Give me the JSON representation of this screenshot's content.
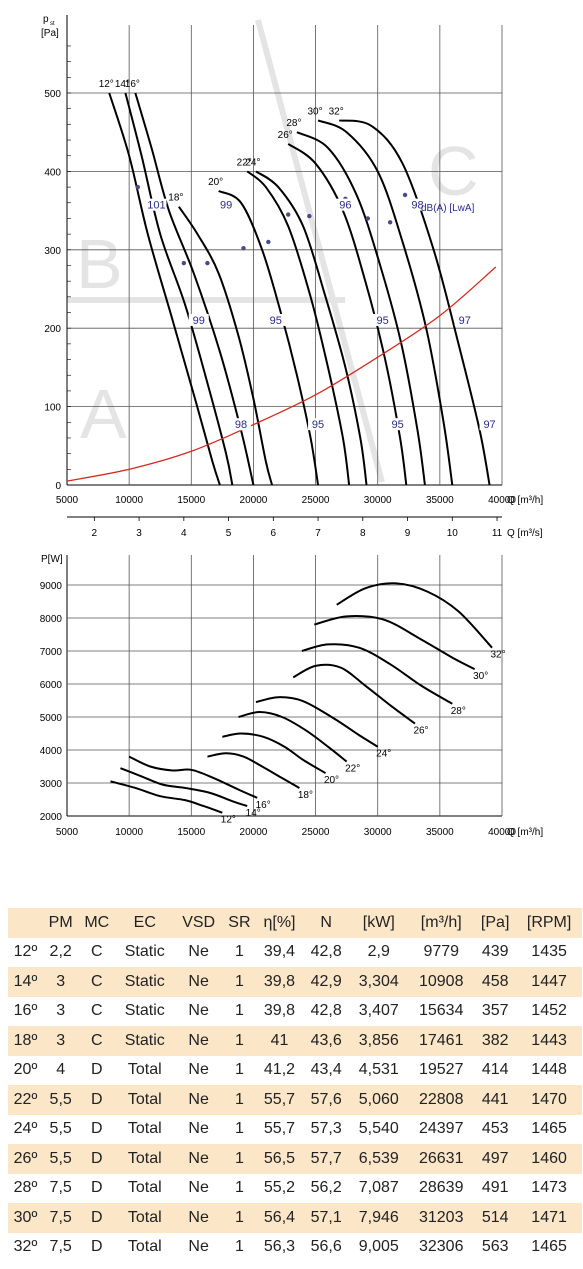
{
  "pressure_chart": {
    "ylabel_line1": "p",
    "ylabel_sub": "st",
    "ylabel_line2": "[Pa]",
    "x_unit": "Q [m³/h]",
    "x2_unit": "Q [m³/s]",
    "zone_letters": [
      "A",
      "B",
      "C"
    ],
    "noise_label": "dB(A) [LwA]"
  },
  "power_chart": {
    "ylabel": "P[W]",
    "x_unit": "Q [m³/h]"
  },
  "chart_data": [
    {
      "type": "line",
      "name": "pressure-flow",
      "xlim": [
        5000,
        40000
      ],
      "ylim": [
        0,
        500
      ],
      "x_ticks": [
        5000,
        10000,
        15000,
        20000,
        25000,
        30000,
        35000,
        40000
      ],
      "y_ticks": [
        0,
        100,
        200,
        300,
        400,
        500
      ],
      "x2_ticks": [
        2,
        3,
        4,
        5,
        6,
        7,
        8,
        9,
        10,
        11
      ],
      "grid": true,
      "series": [
        {
          "name": "12°",
          "points": [
            [
              8400,
              500
            ],
            [
              10000,
              420
            ],
            [
              11500,
              320
            ],
            [
              13500,
              210
            ],
            [
              15300,
              110
            ],
            [
              16700,
              30
            ],
            [
              17300,
              0
            ]
          ]
        },
        {
          "name": "14°",
          "points": [
            [
              9700,
              500
            ],
            [
              11000,
              420
            ],
            [
              12500,
              320
            ],
            [
              14500,
              230
            ],
            [
              16300,
              130
            ],
            [
              17800,
              40
            ],
            [
              18300,
              0
            ]
          ]
        },
        {
          "name": "16°",
          "points": [
            [
              10500,
              500
            ],
            [
              11800,
              430
            ],
            [
              13200,
              350
            ],
            [
              15200,
              270
            ],
            [
              17300,
              170
            ],
            [
              19000,
              70
            ],
            [
              20000,
              0
            ]
          ]
        },
        {
          "name": "18°",
          "points": [
            [
              14000,
              355
            ],
            [
              15500,
              320
            ],
            [
              17200,
              270
            ],
            [
              18800,
              190
            ],
            [
              20000,
              110
            ],
            [
              21000,
              30
            ],
            [
              21500,
              0
            ]
          ]
        },
        {
          "name": "20°",
          "points": [
            [
              17200,
              375
            ],
            [
              19000,
              360
            ],
            [
              20700,
              300
            ],
            [
              22200,
              220
            ],
            [
              23500,
              140
            ],
            [
              24600,
              60
            ],
            [
              25200,
              0
            ]
          ]
        },
        {
          "name": "22°",
          "points": [
            [
              19500,
              400
            ],
            [
              21000,
              380
            ],
            [
              22800,
              330
            ],
            [
              24600,
              240
            ],
            [
              26000,
              150
            ],
            [
              27200,
              60
            ],
            [
              27700,
              0
            ]
          ]
        },
        {
          "name": "24°",
          "points": [
            [
              20200,
              400
            ],
            [
              22000,
              380
            ],
            [
              24000,
              330
            ],
            [
              25800,
              240
            ],
            [
              27400,
              150
            ],
            [
              28600,
              60
            ],
            [
              29100,
              0
            ]
          ]
        },
        {
          "name": "26°",
          "points": [
            [
              22800,
              435
            ],
            [
              25000,
              410
            ],
            [
              27200,
              350
            ],
            [
              29000,
              260
            ],
            [
              30600,
              160
            ],
            [
              31800,
              60
            ],
            [
              32300,
              0
            ]
          ]
        },
        {
          "name": "28°",
          "points": [
            [
              23500,
              450
            ],
            [
              26000,
              430
            ],
            [
              28300,
              370
            ],
            [
              30200,
              280
            ],
            [
              31900,
              180
            ],
            [
              33200,
              70
            ],
            [
              33800,
              0
            ]
          ]
        },
        {
          "name": "30°",
          "points": [
            [
              25200,
              465
            ],
            [
              27500,
              450
            ],
            [
              30000,
              400
            ],
            [
              32000,
              310
            ],
            [
              33900,
              200
            ],
            [
              35300,
              80
            ],
            [
              36000,
              0
            ]
          ]
        },
        {
          "name": "32°",
          "points": [
            [
              26900,
              465
            ],
            [
              29500,
              458
            ],
            [
              32000,
              410
            ],
            [
              34500,
              300
            ],
            [
              36500,
              180
            ],
            [
              38200,
              70
            ],
            [
              39000,
              0
            ]
          ]
        },
        {
          "name": "system",
          "points": [
            [
              5000,
              5
            ],
            [
              10000,
              20
            ],
            [
              15000,
              43
            ],
            [
              20000,
              77
            ],
            [
              25000,
              115
            ],
            [
              30000,
              163
            ],
            [
              35000,
              216
            ],
            [
              39500,
              278
            ]
          ]
        }
      ],
      "markers": [
        [
          10700,
          380
        ],
        [
          14400,
          283
        ],
        [
          16300,
          283
        ],
        [
          19200,
          302
        ],
        [
          21200,
          310
        ],
        [
          22800,
          345
        ],
        [
          24500,
          343
        ],
        [
          27400,
          365
        ],
        [
          29200,
          340
        ],
        [
          31000,
          335
        ],
        [
          32200,
          370
        ]
      ],
      "noise_labels": [
        {
          "text": "101",
          "x": 12200,
          "y": 355
        },
        {
          "text": "99",
          "x": 17800,
          "y": 355
        },
        {
          "text": "96",
          "x": 27400,
          "y": 355
        },
        {
          "text": "98",
          "x": 33200,
          "y": 355
        },
        {
          "text": "99",
          "x": 15600,
          "y": 208
        },
        {
          "text": "95",
          "x": 21800,
          "y": 208
        },
        {
          "text": "95",
          "x": 30400,
          "y": 208
        },
        {
          "text": "97",
          "x": 37000,
          "y": 208
        },
        {
          "text": "98",
          "x": 19000,
          "y": 75
        },
        {
          "text": "95",
          "x": 25200,
          "y": 75
        },
        {
          "text": "95",
          "x": 31600,
          "y": 75
        },
        {
          "text": "97",
          "x": 39000,
          "y": 75
        }
      ]
    },
    {
      "type": "line",
      "name": "power-flow",
      "xlim": [
        5000,
        40000
      ],
      "ylim": [
        2000,
        10000
      ],
      "x_ticks": [
        5000,
        10000,
        15000,
        20000,
        25000,
        30000,
        35000,
        40000
      ],
      "y_ticks": [
        2000,
        3000,
        4000,
        5000,
        6000,
        7000,
        8000,
        9000
      ],
      "grid": true,
      "series": [
        {
          "name": "12°",
          "points": [
            [
              8500,
              3050
            ],
            [
              10500,
              2850
            ],
            [
              12500,
              2600
            ],
            [
              14500,
              2480
            ],
            [
              16000,
              2300
            ],
            [
              17500,
              2100
            ]
          ]
        },
        {
          "name": "14°",
          "points": [
            [
              9300,
              3450
            ],
            [
              11000,
              3200
            ],
            [
              12700,
              2950
            ],
            [
              14500,
              2850
            ],
            [
              16500,
              2700
            ],
            [
              18300,
              2450
            ],
            [
              19500,
              2300
            ]
          ]
        },
        {
          "name": "16°",
          "points": [
            [
              10000,
              3800
            ],
            [
              11700,
              3500
            ],
            [
              13500,
              3380
            ],
            [
              15000,
              3400
            ],
            [
              16800,
              3150
            ],
            [
              18800,
              2800
            ],
            [
              20300,
              2550
            ]
          ]
        },
        {
          "name": "18°",
          "points": [
            [
              16300,
              3800
            ],
            [
              17800,
              3900
            ],
            [
              19200,
              3800
            ],
            [
              20700,
              3500
            ],
            [
              22300,
              3150
            ],
            [
              23700,
              2850
            ]
          ]
        },
        {
          "name": "20°",
          "points": [
            [
              17500,
              4400
            ],
            [
              19000,
              4500
            ],
            [
              20800,
              4400
            ],
            [
              22500,
              4100
            ],
            [
              24000,
              3700
            ],
            [
              25800,
              3300
            ]
          ]
        },
        {
          "name": "22°",
          "points": [
            [
              18800,
              5000
            ],
            [
              20500,
              5150
            ],
            [
              22300,
              5000
            ],
            [
              24200,
              4600
            ],
            [
              26000,
              4100
            ],
            [
              27500,
              3650
            ]
          ]
        },
        {
          "name": "24°",
          "points": [
            [
              20200,
              5450
            ],
            [
              22000,
              5600
            ],
            [
              24000,
              5480
            ],
            [
              26500,
              4950
            ],
            [
              28500,
              4450
            ],
            [
              30000,
              4100
            ]
          ]
        },
        {
          "name": "26°",
          "points": [
            [
              23200,
              6200
            ],
            [
              25000,
              6550
            ],
            [
              27000,
              6500
            ],
            [
              29000,
              5950
            ],
            [
              31200,
              5300
            ],
            [
              33000,
              4800
            ]
          ]
        },
        {
          "name": "28°",
          "points": [
            [
              23900,
              7000
            ],
            [
              26000,
              7200
            ],
            [
              28500,
              7100
            ],
            [
              31000,
              6600
            ],
            [
              33500,
              5950
            ],
            [
              36000,
              5400
            ]
          ]
        },
        {
          "name": "30°",
          "points": [
            [
              24900,
              7800
            ],
            [
              27500,
              8050
            ],
            [
              30500,
              7950
            ],
            [
              33500,
              7350
            ],
            [
              36000,
              6800
            ],
            [
              37800,
              6450
            ]
          ]
        },
        {
          "name": "32°",
          "points": [
            [
              26700,
              8400
            ],
            [
              29000,
              8900
            ],
            [
              31500,
              9050
            ],
            [
              34000,
              8800
            ],
            [
              36500,
              8200
            ],
            [
              39200,
              7100
            ]
          ]
        }
      ]
    },
    {
      "type": "table",
      "name": "performance-table",
      "columns": [
        "",
        "PM",
        "MC",
        "EC",
        "VSD",
        "SR",
        "η[%]",
        "N",
        "[kW]",
        "[m³/h]",
        "[Pa]",
        "[RPM]"
      ],
      "rows": [
        [
          "12º",
          "2,2",
          "C",
          "Static",
          "Ne",
          "1",
          "39,4",
          "42,8",
          "2,9",
          "9779",
          "439",
          "1435"
        ],
        [
          "14º",
          "3",
          "C",
          "Static",
          "Ne",
          "1",
          "39,8",
          "42,9",
          "3,304",
          "10908",
          "458",
          "1447"
        ],
        [
          "16º",
          "3",
          "C",
          "Static",
          "Ne",
          "1",
          "39,8",
          "42,8",
          "3,407",
          "15634",
          "357",
          "1452"
        ],
        [
          "18º",
          "3",
          "C",
          "Static",
          "Ne",
          "1",
          "41",
          "43,6",
          "3,856",
          "17461",
          "382",
          "1443"
        ],
        [
          "20º",
          "4",
          "D",
          "Total",
          "Ne",
          "1",
          "41,2",
          "43,4",
          "4,531",
          "19527",
          "414",
          "1448"
        ],
        [
          "22º",
          "5,5",
          "D",
          "Total",
          "Ne",
          "1",
          "55,7",
          "57,6",
          "5,060",
          "22808",
          "441",
          "1470"
        ],
        [
          "24º",
          "5,5",
          "D",
          "Total",
          "Ne",
          "1",
          "55,7",
          "57,3",
          "5,540",
          "24397",
          "453",
          "1465"
        ],
        [
          "26º",
          "5,5",
          "D",
          "Total",
          "Ne",
          "1",
          "56,5",
          "57,7",
          "6,539",
          "26631",
          "497",
          "1460"
        ],
        [
          "28º",
          "7,5",
          "D",
          "Total",
          "Ne",
          "1",
          "55,2",
          "56,2",
          "7,087",
          "28639",
          "491",
          "1473"
        ],
        [
          "30º",
          "7,5",
          "D",
          "Total",
          "Ne",
          "1",
          "56,4",
          "57,1",
          "7,946",
          "31203",
          "514",
          "1471"
        ],
        [
          "32º",
          "7,5",
          "D",
          "Total",
          "Ne",
          "1",
          "56,3",
          "56,6",
          "9,005",
          "32306",
          "563",
          "1465"
        ]
      ]
    }
  ]
}
